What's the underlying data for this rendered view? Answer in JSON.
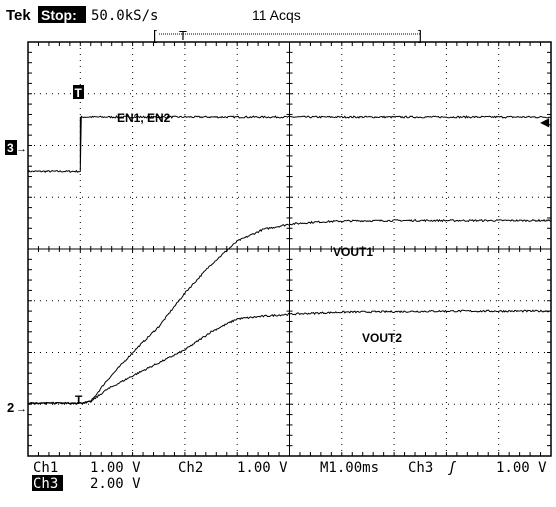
{
  "header": {
    "brand": "Tek",
    "state_badge": "Stop:",
    "sample_rate": "50.0kS/s",
    "acquisitions": "11 Acqs",
    "trigger_position_marker": "T",
    "record_start_bracket": "[",
    "record_end_bracket": "]"
  },
  "markers": {
    "ch3_ground": "3",
    "ch2_ground": "2",
    "trigger_glyph": "T",
    "trigger_level_glyph": "◀",
    "ground_arrow": "→"
  },
  "footer": {
    "ch1_name": "Ch1",
    "ch1_scale": "1.00 V",
    "ch2_name": "Ch2",
    "ch2_scale": "1.00 V",
    "timebase": "M1.00ms",
    "trigger_source": "Ch3",
    "trigger_slope_glyph": "ʃ",
    "trigger_level": "1.00 V",
    "ch3_name": "Ch3",
    "ch3_scale": "2.00 V"
  },
  "colors": {
    "background": "#ffffff",
    "graticule": "#000000",
    "trace": "#000000",
    "badge_bg": "#000000",
    "badge_fg": "#ffffff"
  },
  "chart_data": {
    "type": "line",
    "title": "",
    "xlabel": "",
    "ylabel": "",
    "x_unit": "ms",
    "y_unit": "div",
    "xlim": [
      -1.0,
      9.0
    ],
    "ylim": [
      -4.0,
      4.0
    ],
    "grid": true,
    "divisions": {
      "x": 10,
      "y": 8
    },
    "series": [
      {
        "name": "EN1, EN2",
        "x": [
          -1.0,
          0.0,
          0.0,
          9.0
        ],
        "y": [
          1.5,
          1.5,
          2.55,
          2.55
        ]
      },
      {
        "name": "VOUT1",
        "x": [
          -1.0,
          0.0,
          0.2,
          0.5,
          1.0,
          1.5,
          2.0,
          2.5,
          3.0,
          3.5,
          4.0,
          4.5,
          5.0,
          6.0,
          7.0,
          8.0,
          9.0
        ],
        "y": [
          -2.98,
          -2.98,
          -2.95,
          -2.55,
          -2.0,
          -1.5,
          -0.85,
          -0.3,
          0.15,
          0.38,
          0.48,
          0.52,
          0.54,
          0.55,
          0.55,
          0.55,
          0.55
        ]
      },
      {
        "name": "VOUT2",
        "x": [
          -1.0,
          0.0,
          0.2,
          0.5,
          1.0,
          1.5,
          2.0,
          2.5,
          3.0,
          3.5,
          4.0,
          4.5,
          5.0,
          6.0,
          7.0,
          8.0,
          9.0
        ],
        "y": [
          -2.98,
          -2.98,
          -2.95,
          -2.72,
          -2.45,
          -2.2,
          -1.95,
          -1.6,
          -1.35,
          -1.3,
          -1.26,
          -1.24,
          -1.22,
          -1.21,
          -1.2,
          -1.2,
          -1.2
        ]
      }
    ]
  }
}
